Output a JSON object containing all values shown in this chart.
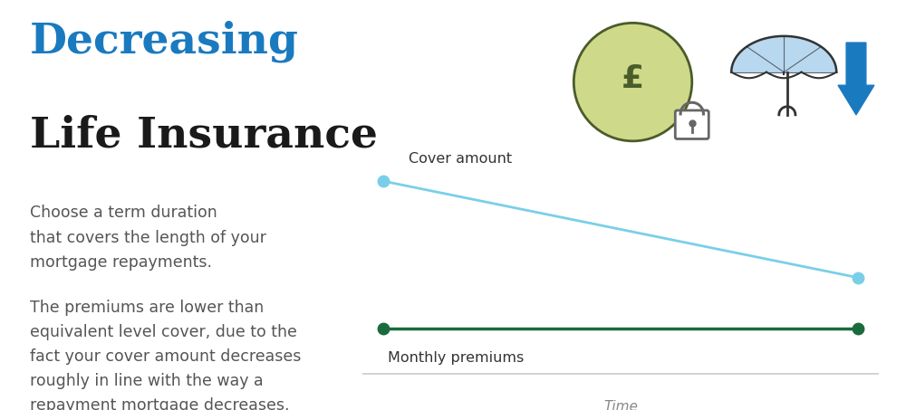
{
  "title_line1": "Decreasing",
  "title_line2": "Life Insurance",
  "title_color1": "#1a7abf",
  "title_color2": "#1a1a1a",
  "title_fontsize1": 34,
  "title_fontsize2": 34,
  "body_text1": "Choose a term duration\nthat covers the length of your\nmortgage repayments.",
  "body_text2": "The premiums are lower than\nequivalent level cover, due to the\nfact your cover amount decreases\nroughly in line with the way a\nrepayment mortgage decreases.",
  "body_text_color": "#555555",
  "body_fontsize": 12.5,
  "cover_label": "Cover amount",
  "premium_label": "Monthly premiums",
  "time_label": "Time",
  "label_color": "#888888",
  "chart_label_color": "#333333",
  "cover_line_color": "#7acfe8",
  "premium_line_color": "#1a6b3c",
  "bg_color": "#ffffff",
  "axis_line_color": "#cccccc",
  "coin_fill_color": "#cfd98a",
  "coin_edge_color": "#4a5c2a",
  "lock_color": "#666666",
  "umbrella_fill_color": "#b8d8f0",
  "umbrella_edge_color": "#333333",
  "arrow_color": "#1a7abf"
}
